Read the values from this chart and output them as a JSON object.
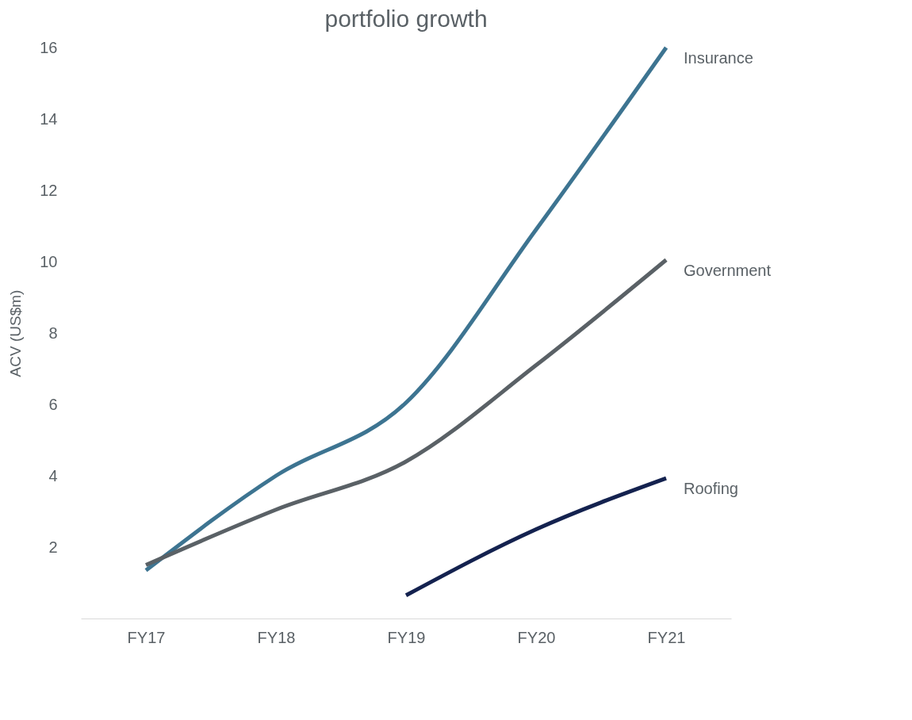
{
  "chart_data": {
    "type": "line",
    "title": "portfolio growth",
    "ylabel": "ACV (US$m)",
    "categories": [
      "FY17",
      "FY18",
      "FY19",
      "FY20",
      "FY21"
    ],
    "series": [
      {
        "name": "Insurance",
        "color": "#3d7491",
        "values": [
          1.35,
          4.0,
          6.05,
          10.9,
          16.0
        ]
      },
      {
        "name": "Government",
        "color": "#5a6166",
        "values": [
          1.5,
          3.05,
          4.4,
          7.1,
          10.05
        ]
      },
      {
        "name": "Roofing",
        "color": "#14224f",
        "values": [
          null,
          null,
          0.65,
          2.5,
          3.93
        ]
      }
    ],
    "ylim": [
      0,
      16
    ],
    "yticks": [
      2,
      4,
      6,
      8,
      10,
      12,
      14,
      16
    ],
    "grid": false,
    "legend": false
  }
}
